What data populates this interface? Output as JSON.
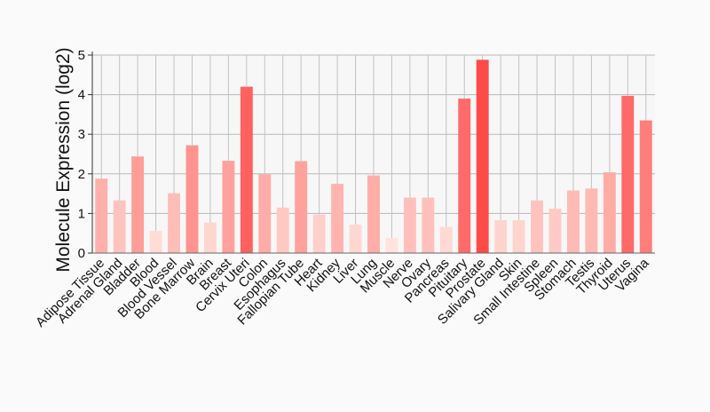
{
  "chart_data": {
    "type": "bar",
    "title": "",
    "xlabel": "",
    "ylabel": "Molecule Expression (log2)",
    "ylim": [
      0,
      5
    ],
    "yticks": [
      0,
      1,
      2,
      3,
      4,
      5
    ],
    "grid": true,
    "legend": "none",
    "color_scale": {
      "low": "#ffe3dc",
      "high": "#ff4a4a"
    },
    "categories": [
      "Adipose Tissue",
      "Adrenal Gland",
      "Bladder",
      "Blood",
      "Blood Vessel",
      "Bone Marrow",
      "Brain",
      "Breast",
      "Cervix Uteri",
      "Colon",
      "Esophagus",
      "Fallopian Tube",
      "Heart",
      "Kidney",
      "Liver",
      "Lung",
      "Muscle",
      "Nerve",
      "Ovary",
      "Pancreas",
      "Pituitary",
      "Prostate",
      "Salivary Gland",
      "Skin",
      "Small Intestine",
      "Spleen",
      "Stomach",
      "Testis",
      "Thyroid",
      "Uterus",
      "Vagina"
    ],
    "values": [
      1.88,
      1.33,
      2.44,
      0.56,
      1.51,
      2.72,
      0.77,
      2.33,
      4.2,
      1.99,
      1.15,
      2.32,
      0.97,
      1.75,
      0.72,
      1.96,
      0.38,
      1.4,
      1.4,
      0.66,
      3.9,
      4.88,
      0.83,
      0.83,
      1.33,
      1.12,
      1.58,
      1.63,
      2.04,
      3.97,
      3.35
    ]
  }
}
